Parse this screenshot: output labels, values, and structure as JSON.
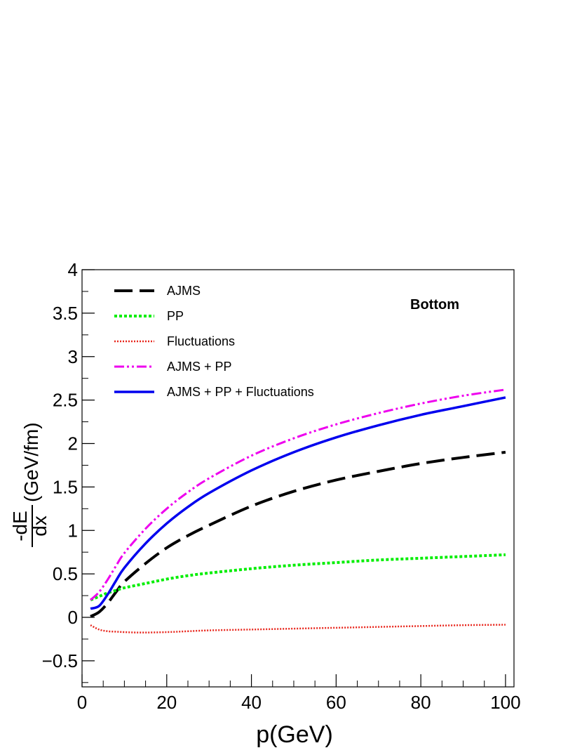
{
  "chart_data": {
    "type": "line",
    "xlabel": "p(GeV)",
    "ylabel": {
      "numerator": "-dE",
      "denominator": "dx",
      "unit": "(GeV/fm)"
    },
    "xlim": [
      0,
      102
    ],
    "ylim": [
      -0.8,
      4.0
    ],
    "x_ticks": [
      0,
      20,
      40,
      60,
      80,
      100
    ],
    "x_tick_labels": [
      "0",
      "20",
      "40",
      "60",
      "80",
      "100"
    ],
    "y_ticks": [
      -0.5,
      0,
      0.5,
      1,
      1.5,
      2,
      2.5,
      3,
      3.5,
      4
    ],
    "y_tick_labels": [
      "−0.5",
      "0",
      "0.5",
      "1",
      "1.5",
      "2",
      "2.5",
      "3",
      "3.5",
      "4"
    ],
    "grid": false,
    "legend_position": "top-left",
    "annotation": "Bottom",
    "series": [
      {
        "name": "AJMS",
        "color": "#000000",
        "style": "long-dash",
        "x": [
          2,
          4,
          6,
          8,
          10,
          15,
          20,
          25,
          30,
          40,
          50,
          60,
          70,
          80,
          90,
          100
        ],
        "y": [
          0.01,
          0.06,
          0.16,
          0.29,
          0.41,
          0.62,
          0.8,
          0.94,
          1.06,
          1.28,
          1.45,
          1.58,
          1.68,
          1.77,
          1.84,
          1.9
        ]
      },
      {
        "name": "PP",
        "color": "#00ee00",
        "style": "dotted",
        "x": [
          2,
          4,
          6,
          8,
          10,
          15,
          20,
          25,
          30,
          40,
          50,
          60,
          70,
          80,
          90,
          100
        ],
        "y": [
          0.2,
          0.24,
          0.28,
          0.31,
          0.34,
          0.39,
          0.44,
          0.48,
          0.51,
          0.56,
          0.6,
          0.63,
          0.66,
          0.68,
          0.7,
          0.72
        ]
      },
      {
        "name": "Fluctuations",
        "color": "#e8261c",
        "style": "fine-dotted",
        "x": [
          2,
          4,
          6,
          8,
          10,
          14,
          20,
          25,
          30,
          40,
          50,
          60,
          70,
          80,
          90,
          100
        ],
        "y": [
          -0.09,
          -0.14,
          -0.16,
          -0.165,
          -0.17,
          -0.175,
          -0.17,
          -0.16,
          -0.15,
          -0.14,
          -0.13,
          -0.12,
          -0.11,
          -0.1,
          -0.09,
          -0.085
        ]
      },
      {
        "name": "AJMS + PP",
        "color": "#ee00ee",
        "style": "dash-dot-dot",
        "x": [
          2,
          4,
          6,
          8,
          10,
          15,
          20,
          25,
          30,
          40,
          50,
          60,
          70,
          80,
          90,
          100
        ],
        "y": [
          0.2,
          0.29,
          0.43,
          0.59,
          0.74,
          1.02,
          1.25,
          1.44,
          1.6,
          1.86,
          2.06,
          2.22,
          2.35,
          2.46,
          2.55,
          2.62
        ]
      },
      {
        "name": "AJMS + PP + Fluctuations",
        "color": "#0000ee",
        "style": "solid",
        "x": [
          2,
          4,
          6,
          8,
          10,
          15,
          20,
          25,
          30,
          40,
          50,
          60,
          70,
          80,
          90,
          100
        ],
        "y": [
          0.1,
          0.13,
          0.26,
          0.42,
          0.57,
          0.85,
          1.08,
          1.27,
          1.43,
          1.69,
          1.9,
          2.07,
          2.21,
          2.33,
          2.43,
          2.53
        ]
      }
    ]
  }
}
